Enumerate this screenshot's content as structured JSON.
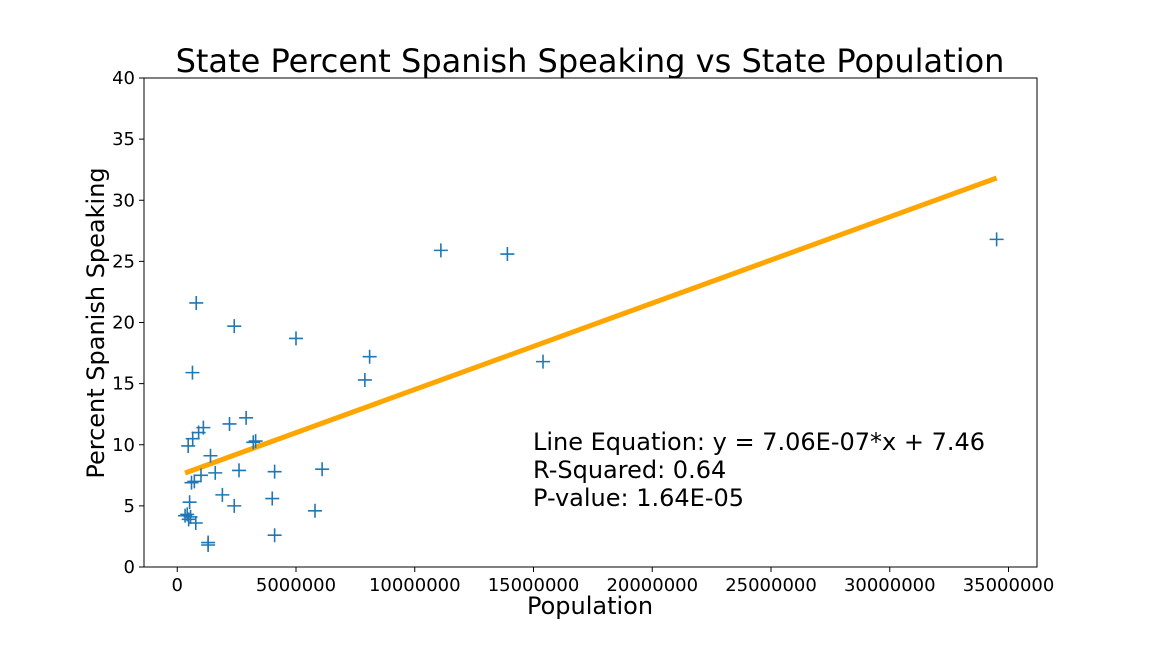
{
  "chart_data": {
    "type": "scatter",
    "title": "State Percent Spanish Speaking vs State Population",
    "xlabel": "Population",
    "ylabel": "Percent Spanish Speaking",
    "xlim": [
      -1400000,
      36200000
    ],
    "ylim": [
      0,
      40
    ],
    "xticks": [
      0,
      5000000,
      10000000,
      15000000,
      20000000,
      25000000,
      30000000,
      35000000
    ],
    "yticks": [
      0,
      5,
      10,
      15,
      20,
      25,
      30,
      35,
      40
    ],
    "grid": false,
    "marker": "+",
    "point_color": "#1f77b4",
    "line_color": "#ffa500",
    "series": [
      {
        "type": "scatter",
        "x": [
          330000,
          420000,
          460000,
          520000,
          600000,
          640000,
          720000,
          780000,
          800000,
          900000,
          1000000,
          1100000,
          1300000,
          1300000,
          1400000,
          1600000,
          1900000,
          2200000,
          2400000,
          2400000,
          2600000,
          2900000,
          3200000,
          3300000,
          4000000,
          4100000,
          4100000,
          5000000,
          5800000,
          6100000,
          7900000,
          8100000,
          11100000,
          13900000,
          15400000,
          34500000,
          480000,
          560000,
          650000
        ],
        "y": [
          4.2,
          4.3,
          9.9,
          5.3,
          6.9,
          15.9,
          7.0,
          3.6,
          21.6,
          11.0,
          7.5,
          11.4,
          2.0,
          1.8,
          9.1,
          7.7,
          5.9,
          11.7,
          5.0,
          19.7,
          7.9,
          12.2,
          10.2,
          10.3,
          5.6,
          2.6,
          7.8,
          18.7,
          4.6,
          8.0,
          15.3,
          17.2,
          25.9,
          25.6,
          16.8,
          26.8,
          3.9,
          4.1,
          10.5
        ]
      },
      {
        "type": "line",
        "x": [
          330000,
          34500000
        ],
        "y": [
          7.69,
          31.82
        ]
      }
    ],
    "annotations": [
      "Line Equation: y = 7.06E-07*x + 7.46",
      "R-Squared: 0.64",
      "P-value: 1.64E-05"
    ]
  }
}
